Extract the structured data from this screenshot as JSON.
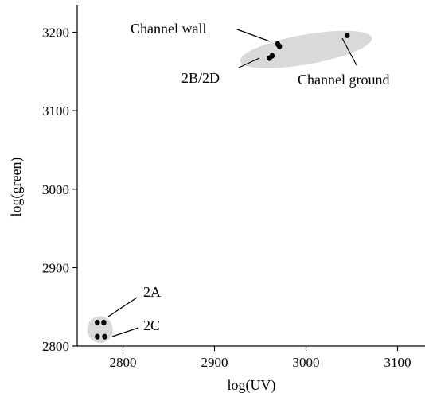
{
  "chart_data": {
    "type": "scatter",
    "xlabel": "log(UV)",
    "ylabel": "log(green)",
    "xlim": [
      2750,
      3130
    ],
    "ylim": [
      2800,
      3235
    ],
    "x_ticks": [
      2800,
      2900,
      3000,
      3100
    ],
    "y_ticks": [
      2800,
      2900,
      3000,
      3100,
      3200
    ],
    "grid": false,
    "colors": {
      "points": "#000000",
      "cluster_fill": "#d9d9d9"
    },
    "points": [
      {
        "group": "2A",
        "x": 2772,
        "y": 2830
      },
      {
        "group": "2A",
        "x": 2779,
        "y": 2830
      },
      {
        "group": "2C",
        "x": 2772,
        "y": 2812
      },
      {
        "group": "2C",
        "x": 2780,
        "y": 2812
      },
      {
        "group": "Channel wall",
        "x": 2969,
        "y": 3185
      },
      {
        "group": "Channel wall",
        "x": 2971,
        "y": 3182
      },
      {
        "group": "2B/2D",
        "x": 2960,
        "y": 3167
      },
      {
        "group": "2B/2D",
        "x": 2963,
        "y": 3170
      },
      {
        "group": "Channel ground",
        "x": 3045,
        "y": 3196
      }
    ],
    "clusters": [
      {
        "name": "lower-left",
        "cx": 2775,
        "cy": 2821,
        "rx": 14,
        "ry": 17,
        "rotation": 0
      },
      {
        "name": "upper-right",
        "cx": 3000,
        "cy": 3178,
        "rx": 73,
        "ry": 19,
        "rotation": -10
      }
    ],
    "annotations": [
      {
        "text": "Channel wall",
        "x": 2968,
        "y": 3184
      },
      {
        "text": "2B/2D",
        "x": 2961,
        "y": 3168
      },
      {
        "text": "Channel ground",
        "x": 3045,
        "y": 3196
      },
      {
        "text": "2A",
        "x": 2782,
        "y": 2831
      },
      {
        "text": "2C",
        "x": 2782,
        "y": 2812
      }
    ]
  }
}
